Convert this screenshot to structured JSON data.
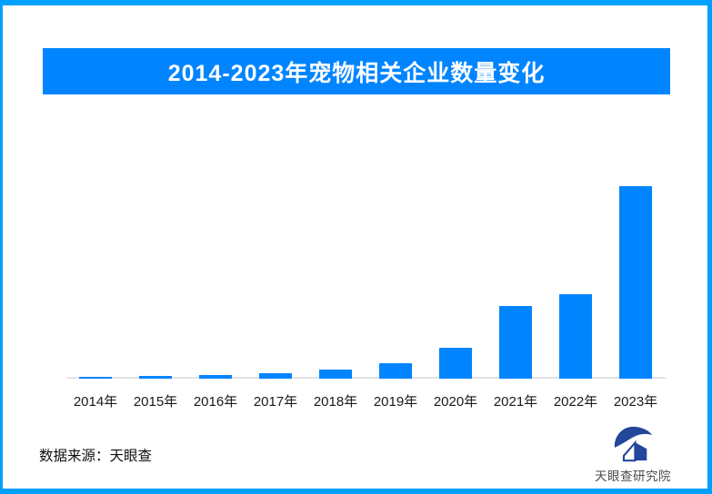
{
  "frame": {
    "border_color": "#00A0FF",
    "background": "#FFFFFF"
  },
  "banner": {
    "title": "2014-2023年宠物相关企业数量变化",
    "background": "#0085FF",
    "text_color": "#FFFFFF"
  },
  "chart_data": {
    "type": "bar",
    "title": "2014-2023年宠物相关企业数量变化",
    "categories": [
      "2014年",
      "2015年",
      "2016年",
      "2017年",
      "2018年",
      "2019年",
      "2020年",
      "2021年",
      "2022年",
      "2023年"
    ],
    "values": [
      1,
      1.5,
      2.1,
      2.9,
      4.6,
      7.8,
      16.1,
      37.7,
      43.8,
      100
    ],
    "value_scale": "relative, tallest bar (2023) = 100; no numeric axis labels shown in chart",
    "xlabel": "",
    "ylabel": "",
    "ylim": [
      0,
      100
    ],
    "grid": false,
    "legend": false,
    "bar_color": "#0085FF",
    "axis_line_color": "#E3E3E3",
    "tick_label_color": "#1A1A1A"
  },
  "footer": {
    "source_label": "数据来源：天眼查",
    "logo_text": "天眼查研究院",
    "logo_icon": "tianyancha-eye-icon",
    "logo_color": "#24479B",
    "logo_text_color": "#4A4A4A"
  }
}
